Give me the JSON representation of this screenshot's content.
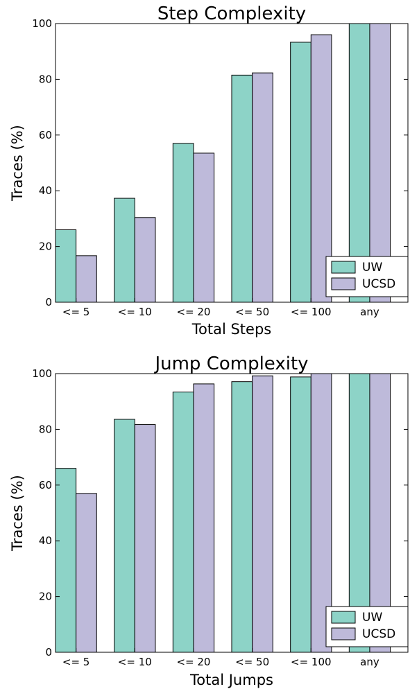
{
  "colors": {
    "uw": "#8dd3c7",
    "ucsd": "#bebada",
    "stroke": "#000000"
  },
  "chart_data": [
    {
      "type": "bar",
      "title": "Step Complexity",
      "xlabel": "Total Steps",
      "ylabel": "Traces (%)",
      "ylim": [
        0,
        100
      ],
      "yticks": [
        "0",
        "20",
        "40",
        "60",
        "80",
        "100"
      ],
      "categories": [
        "<= 5",
        "<= 10",
        "<= 20",
        "<= 50",
        "<= 100",
        "any"
      ],
      "series": [
        {
          "name": "UW",
          "values": [
            26,
            37.3,
            57,
            81.5,
            93.3,
            100
          ]
        },
        {
          "name": "UCSD",
          "values": [
            16.7,
            30.4,
            53.5,
            82.3,
            96,
            100
          ]
        }
      ],
      "legend": "bottom-right",
      "grid": false
    },
    {
      "type": "bar",
      "title": "Jump Complexity",
      "xlabel": "Total Jumps",
      "ylabel": "Traces (%)",
      "ylim": [
        0,
        100
      ],
      "yticks": [
        "0",
        "20",
        "40",
        "60",
        "80",
        "100"
      ],
      "categories": [
        "<= 5",
        "<= 10",
        "<= 20",
        "<= 50",
        "<= 100",
        "any"
      ],
      "series": [
        {
          "name": "UW",
          "values": [
            66,
            83.6,
            93.4,
            97.1,
            98.8,
            100
          ]
        },
        {
          "name": "UCSD",
          "values": [
            57,
            81.7,
            96.3,
            99.2,
            100,
            100
          ]
        }
      ],
      "legend": "bottom-right",
      "grid": false
    }
  ]
}
